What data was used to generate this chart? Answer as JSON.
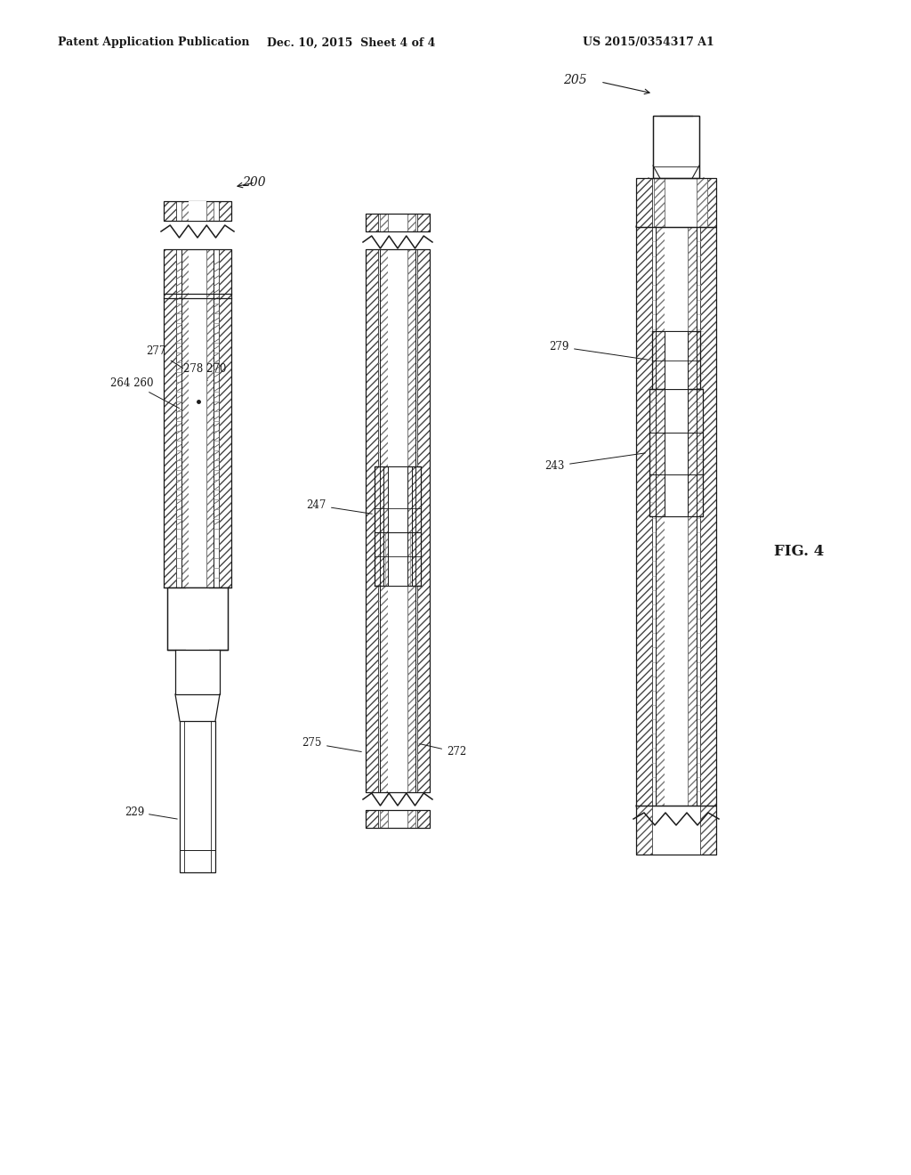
{
  "bg_color": "#ffffff",
  "header_left": "Patent Application Publication",
  "header_center": "Dec. 10, 2015  Sheet 4 of 4",
  "header_right": "US 2015/0354317 A1",
  "fig_label": "FIG. 4",
  "line_color": "#1a1a1a",
  "label_fontsize": 8.5,
  "header_fontsize": 9
}
